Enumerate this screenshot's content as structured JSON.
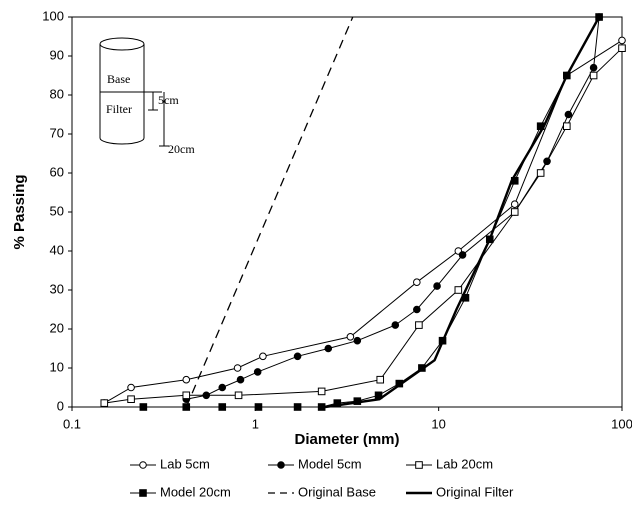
{
  "chart_data": {
    "type": "line",
    "x_label": "Diameter (mm)",
    "y_label": "% Passing",
    "xscale": "log",
    "xlim": [
      0.1,
      100
    ],
    "xticks": [
      0.1,
      1,
      10,
      100
    ],
    "ylim": [
      0,
      100
    ],
    "yticks": [
      0,
      10,
      20,
      30,
      40,
      50,
      60,
      70,
      80,
      90,
      100
    ],
    "grid": false,
    "legend": "bottom",
    "annotations": [
      "Base",
      "Filter",
      "5cm",
      "20cm"
    ],
    "series": [
      {
        "name": "Lab 5cm",
        "color": "#000000",
        "marker": "circle",
        "filled": false,
        "dash": "solid",
        "width": 1,
        "x": [
          0.15,
          0.21,
          0.42,
          0.8,
          1.1,
          3.3,
          7.6,
          12.8,
          26,
          50,
          100
        ],
        "values": [
          1,
          5,
          7,
          10,
          13,
          18,
          32,
          40,
          52,
          85,
          94
        ]
      },
      {
        "name": "Model 5cm",
        "color": "#000000",
        "marker": "circle",
        "filled": true,
        "dash": "solid",
        "width": 1,
        "x": [
          0.42,
          0.54,
          0.66,
          0.83,
          1.03,
          1.7,
          2.5,
          3.6,
          5.8,
          7.6,
          9.8,
          13.5,
          26,
          39,
          51,
          70,
          75
        ],
        "values": [
          2,
          3,
          5,
          7,
          9,
          13,
          15,
          17,
          21,
          25,
          31,
          39,
          50,
          63,
          75,
          87,
          100
        ]
      },
      {
        "name": "Lab 20cm",
        "color": "#000000",
        "marker": "square",
        "filled": false,
        "dash": "solid",
        "width": 1,
        "x": [
          0.15,
          0.21,
          0.42,
          0.81,
          2.3,
          4.8,
          7.8,
          12.8,
          26,
          36,
          50,
          70,
          100
        ],
        "values": [
          1,
          2,
          3,
          3,
          4,
          7,
          21,
          30,
          50,
          60,
          72,
          85,
          92
        ]
      },
      {
        "name": "Model 20cm",
        "color": "#000000",
        "marker": "square",
        "filled": true,
        "dash": "solid",
        "width": 1,
        "x": [
          0.245,
          0.42,
          0.66,
          1.04,
          1.7,
          2.3,
          2.8,
          3.6,
          4.7,
          6.1,
          8.1,
          10.5,
          14,
          19,
          26,
          36,
          50,
          75
        ],
        "values": [
          0,
          0,
          0,
          0,
          0,
          0,
          1,
          1.5,
          3,
          6,
          10,
          17,
          28,
          43,
          58,
          72,
          85,
          100
        ]
      },
      {
        "name": "Original Base",
        "color": "#000000",
        "marker": "none",
        "filled": false,
        "dash": "dashed",
        "width": 1.3,
        "x": [
          0.42,
          3.4
        ],
        "values": [
          0,
          100
        ]
      },
      {
        "name": "Original Filter",
        "color": "#000000",
        "marker": "none",
        "filled": false,
        "dash": "solid",
        "width": 2.4,
        "x": [
          2.4,
          4.75,
          9.5,
          12.5,
          19,
          25,
          37.5,
          50,
          75
        ],
        "values": [
          0,
          2,
          12,
          25,
          43,
          58,
          72,
          85,
          100
        ]
      }
    ]
  }
}
